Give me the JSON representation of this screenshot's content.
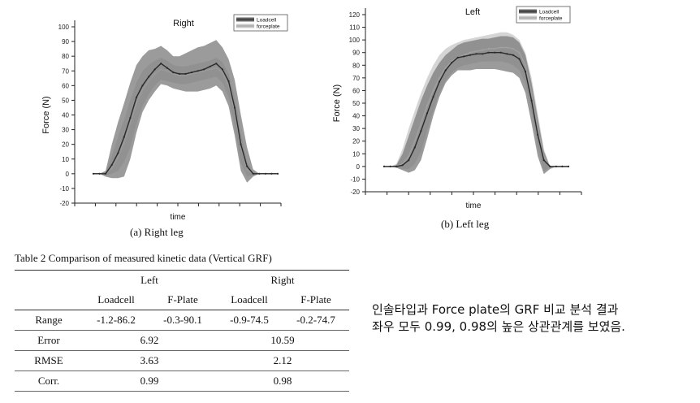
{
  "chart_data": [
    {
      "type": "line",
      "title": "Right",
      "xlabel": "time",
      "ylabel": "Force (N)",
      "ylim": [
        -20,
        100
      ],
      "yticks": [
        -20,
        -10,
        0,
        10,
        20,
        30,
        40,
        50,
        60,
        70,
        80,
        90,
        100
      ],
      "legend": [
        "Loadcell",
        "forceplate"
      ],
      "legend_position": "top-right",
      "x": [
        0,
        1,
        2,
        3,
        4,
        5,
        6,
        7,
        8,
        9,
        10,
        11,
        12,
        13,
        14,
        15,
        16,
        17,
        18,
        19,
        20,
        21,
        22,
        23,
        24,
        25,
        26,
        27,
        28,
        29,
        30
      ],
      "series": [
        {
          "name": "Loadcell",
          "color": "#2a2a2a",
          "values": [
            0,
            0,
            0,
            6,
            14,
            25,
            38,
            52,
            60,
            66,
            71,
            75,
            72,
            69,
            68,
            68,
            69,
            70,
            71,
            73,
            75,
            71,
            63,
            45,
            20,
            5,
            0,
            0,
            0,
            0,
            0
          ],
          "upper": [
            0,
            0,
            2,
            20,
            35,
            48,
            62,
            74,
            80,
            84,
            85,
            87,
            84,
            80,
            80,
            82,
            84,
            86,
            87,
            89,
            91,
            86,
            78,
            64,
            40,
            18,
            3,
            0,
            0,
            0,
            0
          ],
          "lower": [
            0,
            0,
            -2,
            -3,
            -3,
            -2,
            10,
            28,
            42,
            50,
            56,
            61,
            60,
            58,
            57,
            56,
            56,
            56,
            57,
            58,
            60,
            56,
            46,
            26,
            2,
            -6,
            -2,
            0,
            0,
            0,
            0
          ]
        },
        {
          "name": "forceplate",
          "color": "#9a9a9a",
          "values": [
            0,
            0,
            0,
            4,
            11,
            21,
            34,
            48,
            57,
            63,
            68,
            71,
            70,
            68,
            67,
            67,
            68,
            69,
            70,
            71,
            72,
            69,
            60,
            42,
            18,
            3,
            0,
            0,
            0,
            0,
            0
          ],
          "upper": [
            0,
            0,
            1,
            12,
            25,
            37,
            50,
            62,
            70,
            74,
            77,
            79,
            77,
            74,
            73,
            73,
            74,
            75,
            76,
            77,
            79,
            76,
            68,
            52,
            28,
            8,
            1,
            0,
            0,
            0,
            0
          ],
          "lower": [
            0,
            0,
            -1,
            0,
            2,
            8,
            18,
            34,
            46,
            54,
            60,
            64,
            63,
            62,
            61,
            61,
            62,
            63,
            64,
            65,
            66,
            62,
            52,
            32,
            8,
            -2,
            -1,
            0,
            0,
            0,
            0
          ]
        }
      ]
    },
    {
      "type": "line",
      "title": "Left",
      "xlabel": "time",
      "ylabel": "Force (N)",
      "ylim": [
        -20,
        120
      ],
      "yticks": [
        -20,
        -10,
        0,
        10,
        20,
        30,
        40,
        50,
        60,
        70,
        80,
        90,
        100,
        110,
        120
      ],
      "legend": [
        "Loadcell",
        "forceplate"
      ],
      "legend_position": "top-right",
      "x": [
        0,
        1,
        2,
        3,
        4,
        5,
        6,
        7,
        8,
        9,
        10,
        11,
        12,
        13,
        14,
        15,
        16,
        17,
        18,
        19,
        20,
        21,
        22,
        23,
        24,
        25,
        26,
        27,
        28,
        29,
        30
      ],
      "series": [
        {
          "name": "Loadcell",
          "color": "#2a2a2a",
          "values": [
            0,
            0,
            0,
            1,
            5,
            15,
            28,
            42,
            55,
            67,
            76,
            82,
            86,
            87,
            88,
            89,
            89,
            90,
            90,
            90,
            89,
            88,
            85,
            75,
            52,
            25,
            5,
            0,
            0,
            0,
            0
          ],
          "upper": [
            0,
            0,
            1,
            10,
            24,
            38,
            52,
            64,
            74,
            82,
            88,
            92,
            96,
            98,
            99,
            100,
            101,
            101,
            102,
            103,
            103,
            102,
            98,
            88,
            66,
            38,
            12,
            0,
            0,
            0,
            0
          ],
          "lower": [
            0,
            0,
            -1,
            -3,
            -5,
            -3,
            5,
            22,
            40,
            55,
            66,
            72,
            76,
            76,
            76,
            77,
            77,
            77,
            77,
            76,
            75,
            74,
            70,
            58,
            34,
            8,
            -6,
            -2,
            0,
            0,
            0
          ]
        },
        {
          "name": "forceplate",
          "color": "#a0a0a0",
          "values": [
            0,
            0,
            0,
            2,
            8,
            20,
            34,
            48,
            60,
            70,
            78,
            83,
            86,
            88,
            90,
            91,
            92,
            93,
            93,
            94,
            94,
            93,
            90,
            80,
            58,
            30,
            8,
            0,
            0,
            0,
            0
          ],
          "upper": [
            0,
            0,
            2,
            14,
            30,
            44,
            58,
            70,
            80,
            88,
            93,
            96,
            98,
            100,
            101,
            102,
            103,
            104,
            105,
            106,
            106,
            104,
            100,
            90,
            70,
            42,
            14,
            0,
            0,
            0,
            0
          ],
          "lower": [
            0,
            0,
            -1,
            -2,
            -2,
            2,
            12,
            28,
            44,
            58,
            68,
            74,
            78,
            80,
            81,
            82,
            83,
            83,
            83,
            83,
            82,
            80,
            76,
            66,
            44,
            16,
            -4,
            0,
            0,
            0,
            0
          ]
        }
      ]
    }
  ],
  "captions": {
    "right": "(a) Right leg",
    "left": "(b) Left leg"
  },
  "table": {
    "title": "Table 2  Comparison of measured kinetic data (Vertical GRF)",
    "group_headers": [
      "Left",
      "Right"
    ],
    "sub_headers": [
      "Loadcell",
      "F-Plate",
      "Loadcell",
      "F-Plate"
    ],
    "range": {
      "label": "Range",
      "values": [
        "-1.2-86.2",
        "-0.3-90.1",
        "-0.9-74.5",
        "-0.2-74.7"
      ]
    },
    "error": {
      "label": "Error",
      "left": "6.92",
      "right": "10.59"
    },
    "rmse": {
      "label": "RMSE",
      "left": "3.63",
      "right": "2.12"
    },
    "corr": {
      "label": "Corr.",
      "left": "0.99",
      "right": "0.98"
    }
  },
  "note": {
    "line1": "인솔타입과 Force plate의 GRF 비교 분석 결과",
    "line2": "좌우 모두 0.99, 0.98의 높은 상관관계를 보였음."
  }
}
